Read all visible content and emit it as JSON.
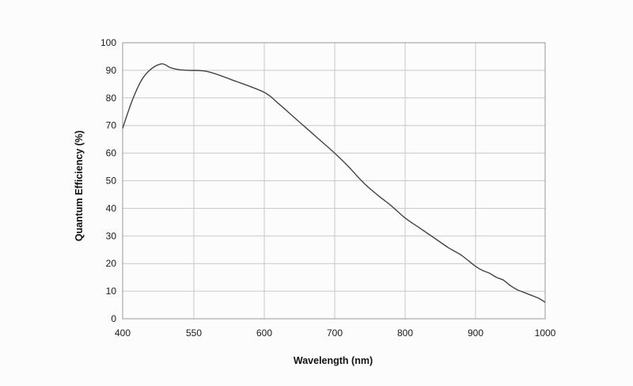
{
  "chart_data": {
    "type": "line",
    "title": "",
    "xlabel": "Wavelength (nm)",
    "ylabel": "Quantum Efficiency (%)",
    "xlim": [
      400,
      1000
    ],
    "ylim": [
      0,
      100
    ],
    "grid": true,
    "x_ticks": [
      400,
      550,
      600,
      700,
      800,
      900,
      1000
    ],
    "y_ticks": [
      0,
      10,
      20,
      30,
      40,
      50,
      60,
      70,
      80,
      90,
      100
    ],
    "colors": {
      "line": "#444444",
      "grid": "#c8c8c8",
      "frame": "#999999"
    },
    "series": [
      {
        "x": [
          400,
          420,
          440,
          460,
          480,
          490,
          500,
          520,
          540,
          560,
          580,
          600,
          620,
          640,
          660,
          680,
          700,
          720,
          740,
          760,
          780,
          800,
          820,
          840,
          860,
          870,
          880,
          890,
          900,
          910,
          920,
          930,
          940,
          950,
          960,
          970,
          980,
          990,
          1000
        ],
        "y": [
          69,
          79,
          86.5,
          90.5,
          92.3,
          92.0,
          91.0,
          90.2,
          90.0,
          89.5,
          86.0,
          82.0,
          78.0,
          73.5,
          69.0,
          64.5,
          60.0,
          55.0,
          49.5,
          45.0,
          41.0,
          36.5,
          33.0,
          29.5,
          26.0,
          24.5,
          23.0,
          21.0,
          19.0,
          17.5,
          16.5,
          15.0,
          14.0,
          12.0,
          10.5,
          9.5,
          8.5,
          7.5,
          6.0
        ]
      }
    ]
  }
}
